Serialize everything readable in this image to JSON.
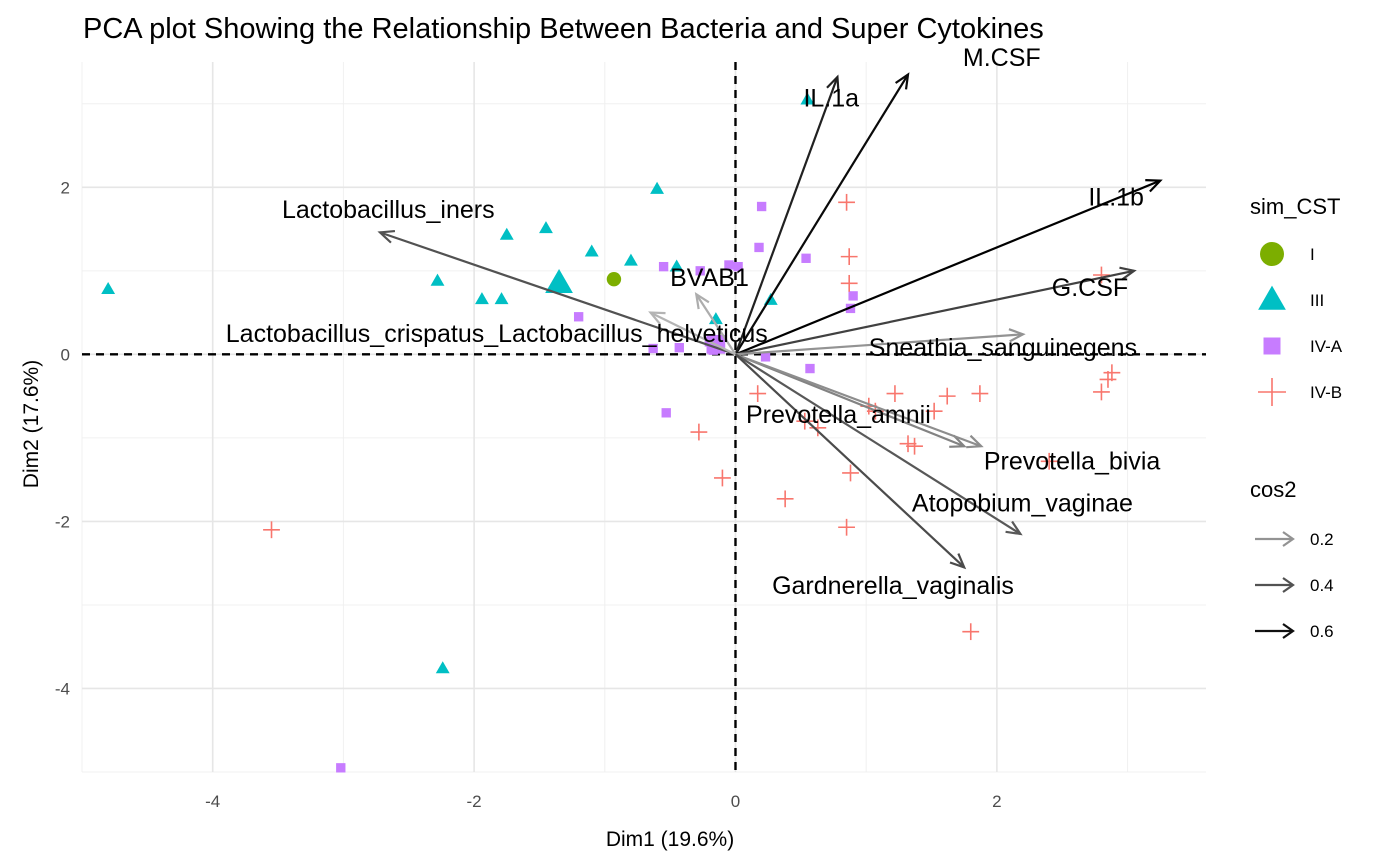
{
  "chart_data": {
    "type": "scatter",
    "title": "PCA plot Showing the Relationship Between Bacteria and Super Cytokines",
    "xlabel": "Dim1 (19.6%)",
    "ylabel": "Dim2 (17.6%)",
    "xlim": [
      -5.0,
      3.6
    ],
    "ylim": [
      -5.0,
      3.5
    ],
    "xticks": [
      -4,
      -2,
      0,
      2
    ],
    "yticks": [
      -4,
      -2,
      0,
      2
    ],
    "grid": true,
    "series": [
      {
        "name": "I",
        "color": "#7CAE00",
        "shape": "circle",
        "points": [
          [
            -0.93,
            0.9
          ]
        ]
      },
      {
        "name": "III",
        "color": "#00BFC4",
        "shape": "triangle",
        "points": [
          [
            -4.8,
            0.78
          ],
          [
            -2.28,
            0.88
          ],
          [
            -1.94,
            0.66
          ],
          [
            -1.79,
            0.66
          ],
          [
            -1.75,
            1.43
          ],
          [
            -1.45,
            1.51
          ],
          [
            -1.1,
            1.23
          ],
          [
            -0.8,
            1.12
          ],
          [
            -0.6,
            1.98
          ],
          [
            -0.45,
            1.05
          ],
          [
            -0.15,
            0.42
          ],
          [
            0.27,
            0.65
          ],
          [
            0.55,
            3.05
          ],
          [
            -2.24,
            -3.76
          ]
        ]
      },
      {
        "name": "IV-A",
        "color": "#C77CFF",
        "shape": "square",
        "points": [
          [
            -3.02,
            -4.95
          ],
          [
            -1.2,
            0.45
          ],
          [
            -0.63,
            0.07
          ],
          [
            -0.55,
            1.05
          ],
          [
            -0.53,
            -0.7
          ],
          [
            -0.43,
            0.08
          ],
          [
            -0.27,
            1.0
          ],
          [
            -0.05,
            1.07
          ],
          [
            0.02,
            1.05
          ],
          [
            0.2,
            1.77
          ],
          [
            0.18,
            1.28
          ],
          [
            0.23,
            -0.03
          ],
          [
            0.54,
            1.15
          ],
          [
            0.57,
            -0.17
          ],
          [
            0.9,
            0.7
          ],
          [
            0.88,
            0.55
          ],
          [
            -0.2,
            0.15
          ],
          [
            -0.17,
            0.05
          ]
        ]
      },
      {
        "name": "IV-B",
        "color": "#F8766D",
        "shape": "plus",
        "points": [
          [
            -3.55,
            -2.1
          ],
          [
            -0.28,
            -0.93
          ],
          [
            -0.1,
            -1.48
          ],
          [
            0.17,
            -0.47
          ],
          [
            0.38,
            -1.73
          ],
          [
            0.53,
            -0.8
          ],
          [
            0.63,
            -0.88
          ],
          [
            0.85,
            1.82
          ],
          [
            0.87,
            1.17
          ],
          [
            0.87,
            0.85
          ],
          [
            0.88,
            -1.42
          ],
          [
            0.85,
            -2.07
          ],
          [
            1.02,
            -0.62
          ],
          [
            1.07,
            -0.68
          ],
          [
            1.22,
            -0.47
          ],
          [
            1.32,
            -1.07
          ],
          [
            1.37,
            -1.1
          ],
          [
            1.52,
            -0.68
          ],
          [
            1.62,
            -0.5
          ],
          [
            1.87,
            -0.47
          ],
          [
            1.8,
            -3.32
          ],
          [
            2.4,
            -1.28
          ],
          [
            2.8,
            0.95
          ],
          [
            2.8,
            -0.45
          ],
          [
            2.85,
            -0.3
          ],
          [
            2.88,
            -0.22
          ]
        ]
      }
    ],
    "large_points": [
      {
        "series": "III",
        "x": -1.35,
        "y": 0.85
      },
      {
        "series": "IV-A",
        "x": -0.15,
        "y": 0.12
      }
    ],
    "vectors": [
      {
        "label": "M.CSF",
        "x": 1.32,
        "y": 3.35,
        "cos2": 0.62,
        "label_x": 1.74,
        "label_y": 3.45
      },
      {
        "label": "IL.1a",
        "x": 0.78,
        "y": 3.32,
        "cos2": 0.55,
        "label_x": 0.52,
        "label_y": 2.97
      },
      {
        "label": "IL.1b",
        "x": 3.25,
        "y": 2.08,
        "cos2": 0.65,
        "label_x": 2.7,
        "label_y": 1.78
      },
      {
        "label": "G.CSF",
        "x": 3.05,
        "y": 1.0,
        "cos2": 0.45,
        "label_x": 2.42,
        "label_y": 0.7
      },
      {
        "label": "Lactobacillus_iners",
        "x": -2.72,
        "y": 1.46,
        "cos2": 0.4,
        "label_x": -3.47,
        "label_y": 1.63
      },
      {
        "label": "BVAB1",
        "x": -0.3,
        "y": 0.72,
        "cos2": 0.12,
        "label_x": -0.5,
        "label_y": 0.82
      },
      {
        "label": "Lactobacillus_crispatus_Lactobacillus_helveticus",
        "x": -0.65,
        "y": 0.5,
        "cos2": 0.1,
        "label_x": -3.9,
        "label_y": 0.15
      },
      {
        "label": "Sneathia_sanguinegens",
        "x": 2.2,
        "y": 0.24,
        "cos2": 0.2,
        "label_x": 1.02,
        "label_y": -0.02
      },
      {
        "label": "Prevotella_amnii",
        "x": 1.75,
        "y": -1.1,
        "cos2": 0.25,
        "label_x": 0.08,
        "label_y": -0.82
      },
      {
        "label": "Prevotella_bivia",
        "x": 1.88,
        "y": -1.1,
        "cos2": 0.22,
        "label_x": 1.9,
        "label_y": -1.38
      },
      {
        "label": "Atopobium_vaginae",
        "x": 2.18,
        "y": -2.15,
        "cos2": 0.38,
        "label_x": 1.35,
        "label_y": -1.88
      },
      {
        "label": "Gardnerella_vaginalis",
        "x": 1.75,
        "y": -2.55,
        "cos2": 0.42,
        "label_x": 0.28,
        "label_y": -2.87
      }
    ],
    "legend_position": "right",
    "legend": {
      "shape_title": "sim_CST",
      "shape_entries": [
        "I",
        "III",
        "IV-A",
        "IV-B"
      ],
      "cos2_title": "cos2",
      "cos2_entries": [
        {
          "label": "0.2",
          "value": 0.2
        },
        {
          "label": "0.4",
          "value": 0.4
        },
        {
          "label": "0.6",
          "value": 0.6
        }
      ]
    }
  }
}
